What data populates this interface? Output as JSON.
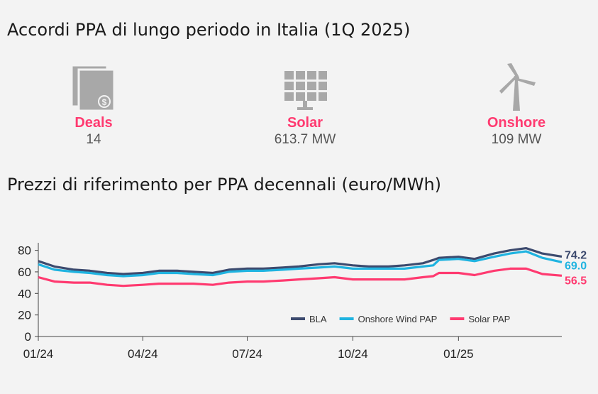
{
  "header": {
    "title": "Accordi PPA di lungo periodo in Italia (1Q 2025)"
  },
  "kpis": [
    {
      "label": "Deals",
      "value": "14",
      "icon": "document-money-icon"
    },
    {
      "label": "Solar",
      "value": "613.7 MW",
      "icon": "solar-panel-icon"
    },
    {
      "label": "Onshore",
      "value": "109 MW",
      "icon": "wind-turbine-icon"
    }
  ],
  "colors": {
    "accent": "#ff3a70",
    "bla": "#3c4a6e",
    "onshore": "#1fb3e0",
    "solar": "#ff3a70",
    "icon_gray": "#a8a8a8"
  },
  "chart_title": "Prezzi di riferimento per PPA decennali (euro/MWh)",
  "chart_data": {
    "type": "line",
    "x": [
      "2024-01-01",
      "2024-01-15",
      "2024-02-01",
      "2024-02-15",
      "2024-03-01",
      "2024-03-15",
      "2024-04-01",
      "2024-04-15",
      "2024-05-01",
      "2024-05-15",
      "2024-06-01",
      "2024-06-15",
      "2024-07-01",
      "2024-07-15",
      "2024-08-01",
      "2024-08-15",
      "2024-09-01",
      "2024-09-15",
      "2024-10-01",
      "2024-10-15",
      "2024-11-01",
      "2024-11-15",
      "2024-12-01",
      "2024-12-10",
      "2024-12-15",
      "2025-01-01",
      "2025-01-15",
      "2025-02-01",
      "2025-02-15",
      "2025-03-01",
      "2025-03-15",
      "2025-04-01"
    ],
    "series": [
      {
        "name": "BLA",
        "color": "#3c4a6e",
        "end_label": "74.2",
        "values": [
          70,
          65,
          62,
          61,
          59,
          58,
          59,
          61,
          61,
          60,
          59,
          62,
          63,
          63,
          64,
          65,
          67,
          68,
          66,
          65,
          65,
          66,
          68,
          71,
          73,
          74,
          72,
          77,
          80,
          82,
          77,
          74.2
        ]
      },
      {
        "name": "Onshore Wind PAP",
        "color": "#1fb3e0",
        "end_label": "69.0",
        "values": [
          67,
          62,
          60,
          59,
          57,
          56,
          57,
          59,
          59,
          58,
          57,
          60,
          61,
          61,
          62,
          63,
          64,
          65,
          63,
          63,
          63,
          63,
          65,
          66,
          71,
          72,
          70,
          74,
          77,
          79,
          73,
          69.0
        ]
      },
      {
        "name": "Solar PAP",
        "color": "#ff3a70",
        "end_label": "56.5",
        "values": [
          55,
          51,
          50,
          50,
          48,
          47,
          48,
          49,
          49,
          49,
          48,
          50,
          51,
          51,
          52,
          53,
          54,
          55,
          53,
          53,
          53,
          53,
          55,
          56,
          59,
          59,
          57,
          61,
          63,
          63,
          58,
          56.5
        ]
      }
    ],
    "yticks": [
      0,
      20,
      40,
      60,
      80
    ],
    "ylim": [
      0,
      85
    ],
    "xticks": [
      {
        "label": "01/24",
        "date": "2024-01-01"
      },
      {
        "label": "04/24",
        "date": "2024-04-01"
      },
      {
        "label": "07/24",
        "date": "2024-07-01"
      },
      {
        "label": "10/24",
        "date": "2024-10-01"
      },
      {
        "label": "01/25",
        "date": "2025-01-01"
      }
    ],
    "xlim": [
      "2024-01-01",
      "2025-04-01"
    ],
    "legend": "bottom-right",
    "grid": false
  }
}
